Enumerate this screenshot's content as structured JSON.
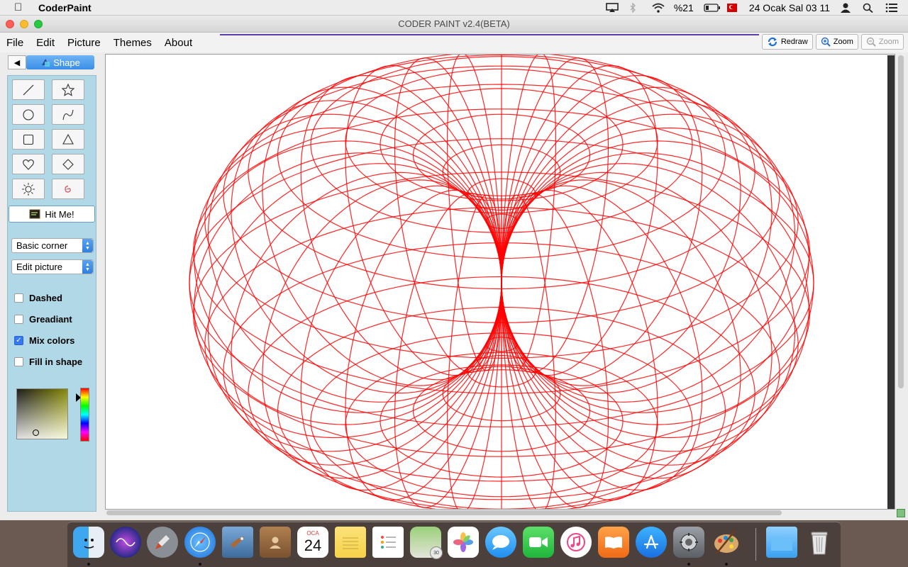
{
  "menubar": {
    "app_name": "CoderPaint",
    "battery": "%21",
    "datetime": "24 Ocak Sal  03 11"
  },
  "window": {
    "title": "CODER PAINT v2.4(BETA)"
  },
  "menu": [
    "File",
    "Edit",
    "Picture",
    "Themes",
    "About"
  ],
  "toolbar": {
    "redraw": "Redraw",
    "zoom_in": "Zoom",
    "zoom_out": "Zoom"
  },
  "sidebar": {
    "tab_label": "Shape",
    "shapes": [
      "line-icon",
      "star-icon",
      "circle-icon",
      "curve-icon",
      "square-icon",
      "triangle-icon",
      "heart-icon",
      "diamond-icon",
      "sun-icon",
      "spiral-icon"
    ],
    "hit_me": "Hit Me!",
    "corner_select": "Basic corner",
    "mode_select": "Edit picture",
    "options": [
      {
        "label": "Dashed",
        "checked": false
      },
      {
        "label": "Greadiant",
        "checked": false
      },
      {
        "label": "Mix colors",
        "checked": true
      },
      {
        "label": "Fill in shape",
        "checked": false
      }
    ]
  },
  "drawing": {
    "stroke_color": "#ff0000",
    "shape": "torus-wireframe"
  },
  "dock": {
    "calendar_month": "OCA",
    "calendar_day": "24",
    "badge": "30"
  }
}
